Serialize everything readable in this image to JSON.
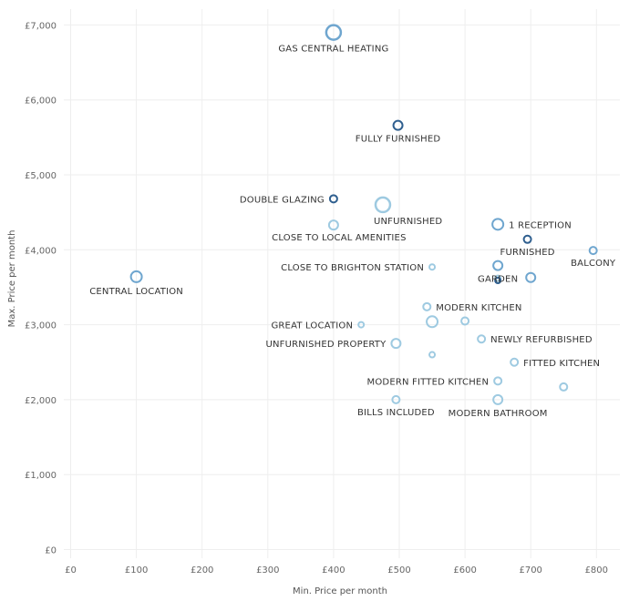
{
  "chart_data": {
    "type": "scatter",
    "title": "",
    "xlabel": "Min. Price per month",
    "ylabel": "Max. Price per month",
    "xlim": [
      0,
      850
    ],
    "ylim": [
      0,
      7200
    ],
    "x_ticks": [
      0,
      100,
      200,
      300,
      400,
      500,
      600,
      700,
      800
    ],
    "x_tick_labels": [
      "£0",
      "£100",
      "£200",
      "£300",
      "£400",
      "£500",
      "£600",
      "£700",
      "£800"
    ],
    "y_ticks": [
      0,
      1000,
      2000,
      3000,
      4000,
      5000,
      6000,
      7000
    ],
    "y_tick_labels": [
      "£0",
      "£1,000",
      "£2,000",
      "£3,000",
      "£4,000",
      "£5,000",
      "£6,000",
      "£7,000"
    ],
    "grid": true,
    "legend": "none",
    "colors": {
      "light": "#9ecae1",
      "mid": "#6fa6cf",
      "dark": "#2f5f8f"
    },
    "points": [
      {
        "label": "GAS CENTRAL HEATING",
        "x": 400,
        "y": 6900,
        "size": 8,
        "shade": "mid",
        "label_pos": "below"
      },
      {
        "label": "FULLY FURNISHED",
        "x": 498,
        "y": 5660,
        "size": 5,
        "shade": "dark",
        "label_pos": "below"
      },
      {
        "label": "DOUBLE GLAZING",
        "x": 400,
        "y": 4680,
        "size": 4,
        "shade": "dark",
        "label_pos": "left"
      },
      {
        "label": "UNFURNISHED",
        "x": 475,
        "y": 4600,
        "size": 8,
        "shade": "light",
        "label_pos": "below-right"
      },
      {
        "label": "CLOSE TO LOCAL AMENITIES",
        "x": 400,
        "y": 4330,
        "size": 5,
        "shade": "light",
        "label_pos": "below-left"
      },
      {
        "label": "1 RECEPTION",
        "x": 650,
        "y": 4340,
        "size": 6,
        "shade": "mid",
        "label_pos": "right"
      },
      {
        "label": "FURNISHED",
        "x": 695,
        "y": 4140,
        "size": 4,
        "shade": "dark",
        "label_pos": "below"
      },
      {
        "label": "BALCONY",
        "x": 795,
        "y": 3990,
        "size": 4,
        "shade": "mid",
        "label_pos": "below"
      },
      {
        "label": "CLOSE TO BRIGHTON STATION",
        "x": 550,
        "y": 3770,
        "size": 3,
        "shade": "light",
        "label_pos": "left"
      },
      {
        "label": "CENTRAL LOCATION",
        "x": 100,
        "y": 3640,
        "size": 6,
        "shade": "mid",
        "label_pos": "below"
      },
      {
        "label": "GARDEN",
        "x": 650,
        "y": 3790,
        "size": 5,
        "shade": "mid",
        "label_pos": "below"
      },
      {
        "label": "",
        "x": 650,
        "y": 3620,
        "size": 3,
        "shade": "light",
        "label_pos": "none"
      },
      {
        "label": "",
        "x": 650,
        "y": 3590,
        "size": 3,
        "shade": "dark",
        "label_pos": "none"
      },
      {
        "label": "",
        "x": 700,
        "y": 3630,
        "size": 5,
        "shade": "mid",
        "label_pos": "none"
      },
      {
        "label": "MODERN KITCHEN",
        "x": 542,
        "y": 3240,
        "size": 4,
        "shade": "light",
        "label_pos": "right"
      },
      {
        "label": "",
        "x": 550,
        "y": 3040,
        "size": 6,
        "shade": "light",
        "label_pos": "none"
      },
      {
        "label": "",
        "x": 600,
        "y": 3050,
        "size": 4,
        "shade": "light",
        "label_pos": "none"
      },
      {
        "label": "GREAT LOCATION",
        "x": 442,
        "y": 3000,
        "size": 3,
        "shade": "light",
        "label_pos": "left"
      },
      {
        "label": "NEWLY REFURBISHED",
        "x": 625,
        "y": 2810,
        "size": 4,
        "shade": "light",
        "label_pos": "right"
      },
      {
        "label": "UNFURNISHED PROPERTY",
        "x": 495,
        "y": 2750,
        "size": 5,
        "shade": "light",
        "label_pos": "left"
      },
      {
        "label": "",
        "x": 550,
        "y": 2600,
        "size": 3,
        "shade": "light",
        "label_pos": "none"
      },
      {
        "label": "FITTED KITCHEN",
        "x": 675,
        "y": 2500,
        "size": 4,
        "shade": "light",
        "label_pos": "right"
      },
      {
        "label": "MODERN FITTED KITCHEN",
        "x": 650,
        "y": 2250,
        "size": 4,
        "shade": "light",
        "label_pos": "left"
      },
      {
        "label": "",
        "x": 750,
        "y": 2170,
        "size": 4,
        "shade": "light",
        "label_pos": "none"
      },
      {
        "label": "BILLS INCLUDED",
        "x": 495,
        "y": 2000,
        "size": 4,
        "shade": "light",
        "label_pos": "below"
      },
      {
        "label": "MODERN BATHROOM",
        "x": 650,
        "y": 2000,
        "size": 5,
        "shade": "light",
        "label_pos": "below"
      }
    ]
  }
}
